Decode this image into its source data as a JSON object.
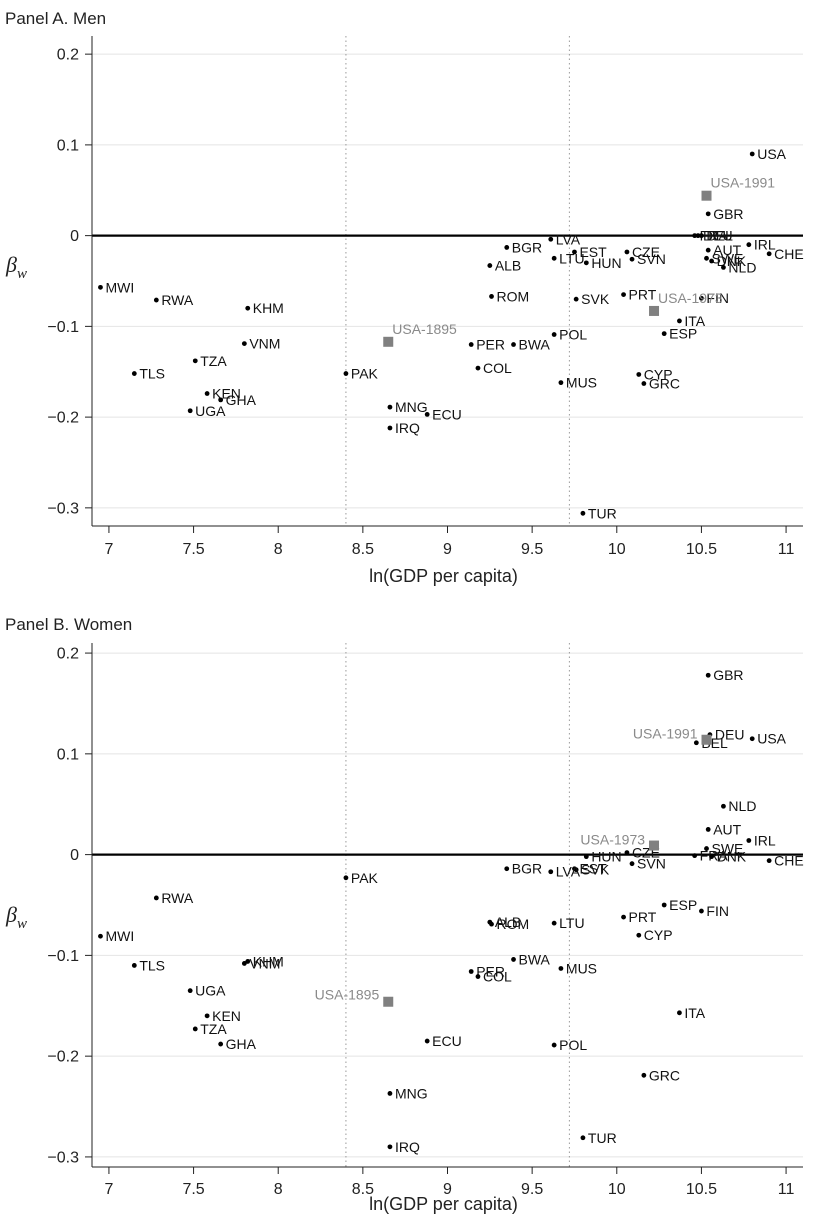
{
  "chart_data": [
    {
      "type": "scatter",
      "title": "Panel A. Men",
      "xlabel": "ln(GDP per capita)",
      "ylabel": "β",
      "ylabel_sub": "w",
      "xlim": [
        6.9,
        11.1
      ],
      "ylim": [
        -0.32,
        0.22
      ],
      "x_ticks": [
        7,
        7.5,
        8,
        8.5,
        9,
        9.5,
        10,
        10.5,
        11
      ],
      "x_tick_labels": [
        "7",
        "7.5",
        "8",
        "8.5",
        "9",
        "9.5",
        "10",
        "10.5",
        "11"
      ],
      "y_ticks": [
        -0.3,
        -0.2,
        -0.1,
        0,
        0.1,
        0.2
      ],
      "y_tick_labels": [
        "−0.3",
        "−0.2",
        "−0.1",
        "0",
        "0.1",
        "0.2"
      ],
      "grid": true,
      "zero_line": 0,
      "reference_lines_x": [
        8.4,
        9.72
      ],
      "points": [
        {
          "label": "USA",
          "x": 10.8,
          "y": 0.09
        },
        {
          "label": "GBR",
          "x": 10.54,
          "y": 0.024
        },
        {
          "label": "FRA",
          "x": 10.46,
          "y": 0.0
        },
        {
          "label": "DEU",
          "x": 10.48,
          "y": 0.0
        },
        {
          "label": "BEL",
          "x": 10.5,
          "y": 0.0
        },
        {
          "label": "IRL",
          "x": 10.78,
          "y": -0.01
        },
        {
          "label": "AUT",
          "x": 10.54,
          "y": -0.016
        },
        {
          "label": "CHE",
          "x": 10.9,
          "y": -0.02
        },
        {
          "label": "SWE",
          "x": 10.53,
          "y": -0.025
        },
        {
          "label": "DNK",
          "x": 10.56,
          "y": -0.028
        },
        {
          "label": "NLD",
          "x": 10.63,
          "y": -0.035
        },
        {
          "label": "LVA",
          "x": 9.61,
          "y": -0.004
        },
        {
          "label": "BGR",
          "x": 9.35,
          "y": -0.013
        },
        {
          "label": "EST",
          "x": 9.75,
          "y": -0.018
        },
        {
          "label": "LTU",
          "x": 9.63,
          "y": -0.025
        },
        {
          "label": "CZE",
          "x": 10.06,
          "y": -0.018
        },
        {
          "label": "SVN",
          "x": 10.09,
          "y": -0.026
        },
        {
          "label": "HUN",
          "x": 9.82,
          "y": -0.03
        },
        {
          "label": "ALB",
          "x": 9.25,
          "y": -0.033
        },
        {
          "label": "MWI",
          "x": 6.95,
          "y": -0.057
        },
        {
          "label": "RWA",
          "x": 7.28,
          "y": -0.071
        },
        {
          "label": "KHM",
          "x": 7.82,
          "y": -0.08
        },
        {
          "label": "ROM",
          "x": 9.26,
          "y": -0.067
        },
        {
          "label": "SVK",
          "x": 9.76,
          "y": -0.07
        },
        {
          "label": "PRT",
          "x": 10.04,
          "y": -0.065
        },
        {
          "label": "FIN",
          "x": 10.5,
          "y": -0.069
        },
        {
          "label": "ITA",
          "x": 10.37,
          "y": -0.094
        },
        {
          "label": "ESP",
          "x": 10.28,
          "y": -0.108
        },
        {
          "label": "POL",
          "x": 9.63,
          "y": -0.109
        },
        {
          "label": "VNM",
          "x": 7.8,
          "y": -0.119
        },
        {
          "label": "PER",
          "x": 9.14,
          "y": -0.12
        },
        {
          "label": "BWA",
          "x": 9.39,
          "y": -0.12
        },
        {
          "label": "TZA",
          "x": 7.51,
          "y": -0.138
        },
        {
          "label": "COL",
          "x": 9.18,
          "y": -0.146
        },
        {
          "label": "TLS",
          "x": 7.15,
          "y": -0.152
        },
        {
          "label": "PAK",
          "x": 8.4,
          "y": -0.152
        },
        {
          "label": "CYP",
          "x": 10.13,
          "y": -0.153
        },
        {
          "label": "MUS",
          "x": 9.67,
          "y": -0.162
        },
        {
          "label": "GRC",
          "x": 10.16,
          "y": -0.163
        },
        {
          "label": "KEN",
          "x": 7.58,
          "y": -0.174
        },
        {
          "label": "GHA",
          "x": 7.66,
          "y": -0.181
        },
        {
          "label": "UGA",
          "x": 7.48,
          "y": -0.193
        },
        {
          "label": "MNG",
          "x": 8.66,
          "y": -0.189
        },
        {
          "label": "ECU",
          "x": 8.88,
          "y": -0.197
        },
        {
          "label": "IRQ",
          "x": 8.66,
          "y": -0.212
        },
        {
          "label": "TUR",
          "x": 9.8,
          "y": -0.306
        }
      ],
      "usa_benchmarks": [
        {
          "label": "USA-1991",
          "x": 10.53,
          "y": 0.044
        },
        {
          "label": "USA-1973",
          "x": 10.22,
          "y": -0.083
        },
        {
          "label": "USA-1895",
          "x": 8.65,
          "y": -0.117
        }
      ]
    },
    {
      "type": "scatter",
      "title": "Panel B. Women",
      "xlabel": "ln(GDP per capita)",
      "ylabel": "β",
      "ylabel_sub": "w",
      "xlim": [
        6.9,
        11.1
      ],
      "ylim": [
        -0.31,
        0.21
      ],
      "x_ticks": [
        7,
        7.5,
        8,
        8.5,
        9,
        9.5,
        10,
        10.5,
        11
      ],
      "x_tick_labels": [
        "7",
        "7.5",
        "8",
        "8.5",
        "9",
        "9.5",
        "10",
        "10.5",
        "11"
      ],
      "y_ticks": [
        -0.3,
        -0.2,
        -0.1,
        0,
        0.1,
        0.2
      ],
      "y_tick_labels": [
        "−0.3",
        "−0.2",
        "−0.1",
        "0",
        "0.1",
        "0.2"
      ],
      "grid": true,
      "zero_line": 0,
      "reference_lines_x": [
        8.4,
        9.72
      ],
      "points": [
        {
          "label": "GBR",
          "x": 10.54,
          "y": 0.178
        },
        {
          "label": "DEU",
          "x": 10.55,
          "y": 0.119
        },
        {
          "label": "BEL",
          "x": 10.47,
          "y": 0.111
        },
        {
          "label": "USA",
          "x": 10.8,
          "y": 0.115
        },
        {
          "label": "NLD",
          "x": 10.63,
          "y": 0.048
        },
        {
          "label": "AUT",
          "x": 10.54,
          "y": 0.025
        },
        {
          "label": "IRL",
          "x": 10.78,
          "y": 0.014
        },
        {
          "label": "SWE",
          "x": 10.53,
          "y": 0.006
        },
        {
          "label": "CZE",
          "x": 10.06,
          "y": 0.002
        },
        {
          "label": "FRA",
          "x": 10.46,
          "y": -0.001
        },
        {
          "label": "DNK",
          "x": 10.56,
          "y": -0.002
        },
        {
          "label": "CHE",
          "x": 10.9,
          "y": -0.006
        },
        {
          "label": "HUN",
          "x": 9.82,
          "y": -0.002
        },
        {
          "label": "SVN",
          "x": 10.09,
          "y": -0.009
        },
        {
          "label": "EST",
          "x": 9.75,
          "y": -0.014
        },
        {
          "label": "SVK",
          "x": 9.76,
          "y": -0.015
        },
        {
          "label": "BGR",
          "x": 9.35,
          "y": -0.014
        },
        {
          "label": "LVA",
          "x": 9.61,
          "y": -0.017
        },
        {
          "label": "PAK",
          "x": 8.4,
          "y": -0.023
        },
        {
          "label": "RWA",
          "x": 7.28,
          "y": -0.043
        },
        {
          "label": "ESP",
          "x": 10.28,
          "y": -0.05
        },
        {
          "label": "FIN",
          "x": 10.5,
          "y": -0.056
        },
        {
          "label": "PRT",
          "x": 10.04,
          "y": -0.062
        },
        {
          "label": "ALB",
          "x": 9.25,
          "y": -0.067
        },
        {
          "label": "ROM",
          "x": 9.26,
          "y": -0.069
        },
        {
          "label": "LTU",
          "x": 9.63,
          "y": -0.068
        },
        {
          "label": "CYP",
          "x": 10.13,
          "y": -0.08
        },
        {
          "label": "MWI",
          "x": 6.95,
          "y": -0.081
        },
        {
          "label": "KHM",
          "x": 7.82,
          "y": -0.106
        },
        {
          "label": "VNM",
          "x": 7.8,
          "y": -0.108
        },
        {
          "label": "BWA",
          "x": 9.39,
          "y": -0.104
        },
        {
          "label": "TLS",
          "x": 7.15,
          "y": -0.11
        },
        {
          "label": "MUS",
          "x": 9.67,
          "y": -0.113
        },
        {
          "label": "PER",
          "x": 9.14,
          "y": -0.116
        },
        {
          "label": "COL",
          "x": 9.18,
          "y": -0.121
        },
        {
          "label": "UGA",
          "x": 7.48,
          "y": -0.135
        },
        {
          "label": "ITA",
          "x": 10.37,
          "y": -0.157
        },
        {
          "label": "KEN",
          "x": 7.58,
          "y": -0.16
        },
        {
          "label": "TZA",
          "x": 7.51,
          "y": -0.173
        },
        {
          "label": "ECU",
          "x": 8.88,
          "y": -0.185
        },
        {
          "label": "GHA",
          "x": 7.66,
          "y": -0.188
        },
        {
          "label": "POL",
          "x": 9.63,
          "y": -0.189
        },
        {
          "label": "GRC",
          "x": 10.16,
          "y": -0.219
        },
        {
          "label": "MNG",
          "x": 8.66,
          "y": -0.237
        },
        {
          "label": "TUR",
          "x": 9.8,
          "y": -0.281
        },
        {
          "label": "IRQ",
          "x": 8.66,
          "y": -0.29
        }
      ],
      "usa_benchmarks": [
        {
          "label": "USA-1991",
          "x": 10.53,
          "y": 0.114
        },
        {
          "label": "USA-1973",
          "x": 10.22,
          "y": 0.009
        },
        {
          "label": "USA-1895",
          "x": 8.65,
          "y": -0.146
        }
      ]
    }
  ],
  "colors": {
    "point": "#000000",
    "usa_marker": "#808080",
    "usa_label": "#8a8a8a",
    "grid": "#e4e4e4",
    "reference_line": "#9a9a9a"
  }
}
